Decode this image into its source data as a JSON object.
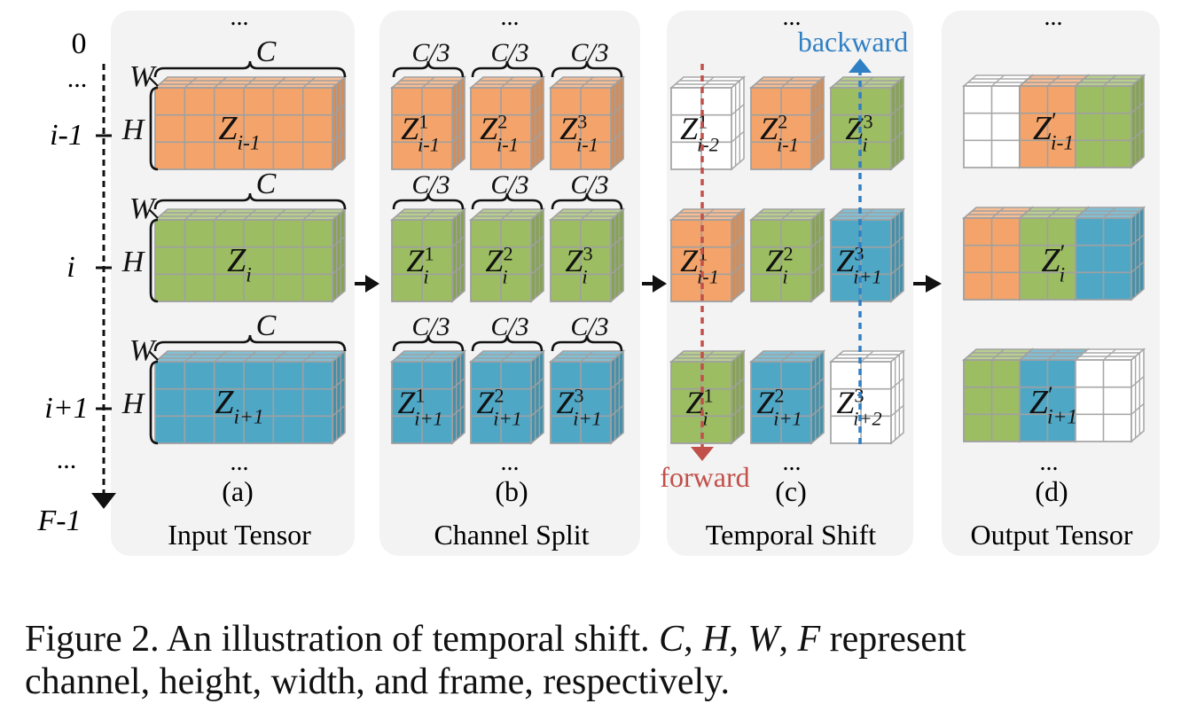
{
  "frame_axis": {
    "ticks": [
      "0",
      "...",
      "i-1",
      "i",
      "i+1",
      "...",
      "F-1"
    ]
  },
  "dims": {
    "C": "C",
    "W": "W",
    "H": "H",
    "C_third": "C/3"
  },
  "ellipsis": "...",
  "panels": [
    {
      "id": "a",
      "letter": "(a)",
      "title": "Input Tensor"
    },
    {
      "id": "b",
      "letter": "(b)",
      "title": "Channel Split"
    },
    {
      "id": "c",
      "letter": "(c)",
      "title": "Temporal Shift"
    },
    {
      "id": "d",
      "letter": "(d)",
      "title": "Output Tensor"
    }
  ],
  "tensors": {
    "input": [
      {
        "base": "Z",
        "sub": "i-1",
        "color": "orange"
      },
      {
        "base": "Z",
        "sub": "i",
        "color": "green"
      },
      {
        "base": "Z",
        "sub": "i+1",
        "color": "blue"
      }
    ],
    "split": [
      [
        {
          "sup": "1",
          "sub": "i-1"
        },
        {
          "sup": "2",
          "sub": "i-1"
        },
        {
          "sup": "3",
          "sub": "i-1"
        }
      ],
      [
        {
          "sup": "1",
          "sub": "i"
        },
        {
          "sup": "2",
          "sub": "i"
        },
        {
          "sup": "3",
          "sub": "i"
        }
      ],
      [
        {
          "sup": "1",
          "sub": "i+1"
        },
        {
          "sup": "2",
          "sub": "i+1"
        },
        {
          "sup": "3",
          "sub": "i+1"
        }
      ]
    ],
    "shifted": [
      [
        {
          "sup": "1",
          "sub": "i-2",
          "color": "white"
        },
        {
          "sup": "2",
          "sub": "i-1",
          "color": "orange"
        },
        {
          "sup": "3",
          "sub": "i",
          "color": "green"
        }
      ],
      [
        {
          "sup": "1",
          "sub": "i-1",
          "color": "orange"
        },
        {
          "sup": "2",
          "sub": "i",
          "color": "green"
        },
        {
          "sup": "3",
          "sub": "i+1",
          "color": "blue"
        }
      ],
      [
        {
          "sup": "1",
          "sub": "i",
          "color": "green"
        },
        {
          "sup": "2",
          "sub": "i+1",
          "color": "blue"
        },
        {
          "sup": "3",
          "sub": "i+2",
          "color": "white"
        }
      ]
    ],
    "output": [
      {
        "base": "Z",
        "prime": "′",
        "sub": "i-1",
        "colors": [
          "white",
          "orange",
          "green"
        ]
      },
      {
        "base": "Z",
        "prime": "′",
        "sub": "i",
        "colors": [
          "orange",
          "green",
          "blue"
        ]
      },
      {
        "base": "Z",
        "prime": "′",
        "sub": "i+1",
        "colors": [
          "green",
          "blue",
          "white"
        ]
      }
    ]
  },
  "shift_labels": {
    "backward": "backward",
    "forward": "forward"
  },
  "colors": {
    "orange": "#f4a46a",
    "green": "#9cbd62",
    "blue": "#4fa7c6",
    "white": "#ffffff",
    "panel_bg": "#f3f3f3",
    "backward": "#2f7fc4",
    "forward": "#c1504a"
  },
  "caption": {
    "prefix": "Figure 2. An illustration of temporal shift.",
    "vars": [
      "C",
      "H",
      "W",
      "F"
    ],
    "suffix_line1": "represent",
    "line2": "channel, height, width, and frame, respectively."
  }
}
